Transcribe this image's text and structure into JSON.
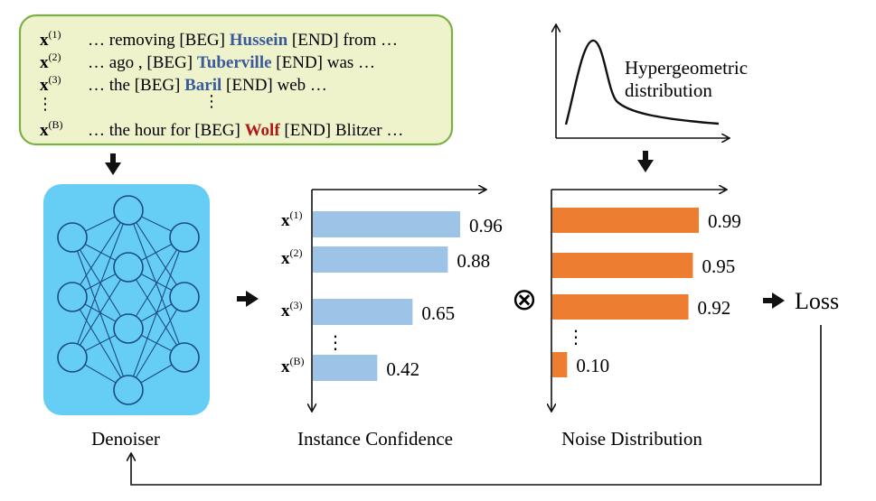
{
  "sentences": [
    {
      "var": "x",
      "sup": "(1)",
      "before": "… removing [BEG] ",
      "entity": "Hussein",
      "after": " [END] from …",
      "entity_color": "#3b5a9a"
    },
    {
      "var": "x",
      "sup": "(2)",
      "before": "… ago , [BEG] ",
      "entity": "Tuberville",
      "after": " [END] was …",
      "entity_color": "#3b5a9a"
    },
    {
      "var": "x",
      "sup": "(3)",
      "before": "… the [BEG] ",
      "entity": "Baril",
      "after": " [END] web …",
      "entity_color": "#3b5a9a"
    },
    {
      "var": "x",
      "sup": "(B)",
      "before": "… the hour for [BEG] ",
      "entity": "Wolf",
      "after": " [END] Blitzer …",
      "entity_color": "#b01818"
    }
  ],
  "ellipsis": "⋮",
  "denoiser_label": "Denoiser",
  "hypergeometric": {
    "line1": "Hypergeometric",
    "line2": "distribution"
  },
  "instance_confidence": {
    "label": "Instance Confidence",
    "color": "#9dc3e6",
    "items": [
      {
        "var": "x",
        "sup": "(1)",
        "value": 0.96,
        "text": "0.96"
      },
      {
        "var": "x",
        "sup": "(2)",
        "value": 0.88,
        "text": "0.88"
      },
      {
        "var": "x",
        "sup": "(3)",
        "value": 0.65,
        "text": "0.65"
      },
      {
        "var": "x",
        "sup": "(B)",
        "value": 0.42,
        "text": "0.42"
      }
    ]
  },
  "noise_distribution": {
    "label": "Noise Distribution",
    "color": "#ed7d31",
    "items": [
      {
        "value": 0.99,
        "text": "0.99"
      },
      {
        "value": 0.95,
        "text": "0.95"
      },
      {
        "value": 0.92,
        "text": "0.92"
      },
      {
        "value": 0.1,
        "text": "0.10"
      }
    ]
  },
  "operator": "⊗",
  "loss_label": "Loss",
  "colors": {
    "sentence_box_fill": "#eef3cc",
    "sentence_box_stroke": "#7bb043",
    "denoiser_fill": "#66cdf5",
    "node_stroke": "#1a4a8a"
  }
}
